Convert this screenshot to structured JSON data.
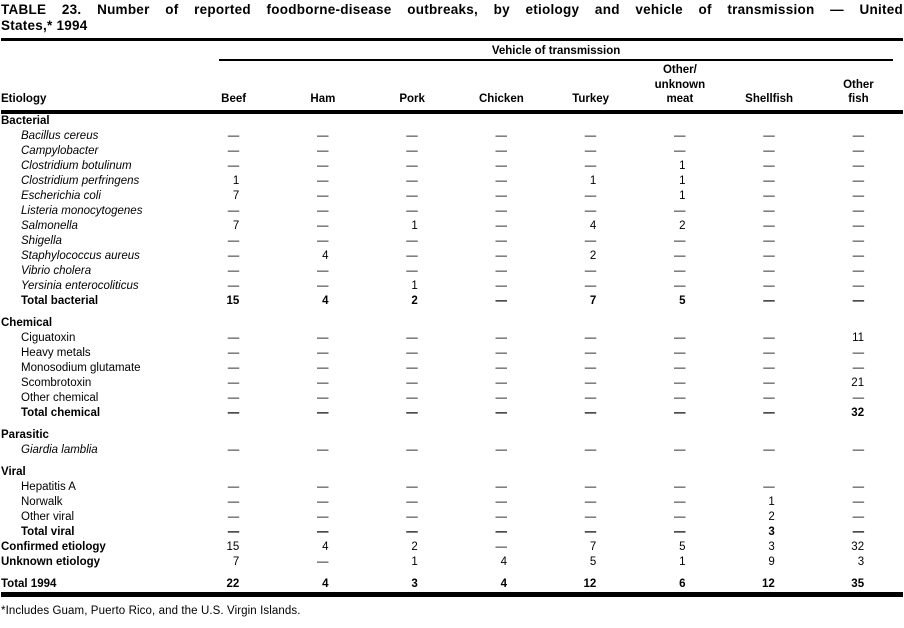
{
  "page": {
    "title_lines": [
      "TABLE 23. Number of reported foodborne-disease outbreaks, by etiology and vehicle of transmission — United",
      "States,* 1994"
    ],
    "footnote": "*Includes Guam, Puerto Rico, and the U.S. Virgin Islands."
  },
  "table": {
    "spanner": "Vehicle of transmission",
    "row_header": "Etiology",
    "columns": [
      "Beef",
      "Ham",
      "Pork",
      "Chicken",
      "Turkey",
      "Other/\nunknown\nmeat",
      "Shellfish",
      "Other\nfish"
    ],
    "rows": [
      {
        "type": "section",
        "label": "Bacterial"
      },
      {
        "type": "item",
        "italic": true,
        "label": "Bacillus cereus",
        "values": [
          "—",
          "—",
          "—",
          "—",
          "—",
          "—",
          "—",
          "—"
        ]
      },
      {
        "type": "item",
        "italic": true,
        "label": "Campylobacter",
        "values": [
          "—",
          "—",
          "—",
          "—",
          "—",
          "—",
          "—",
          "—"
        ]
      },
      {
        "type": "item",
        "italic": true,
        "label": "Clostridium botulinum",
        "values": [
          "—",
          "—",
          "—",
          "—",
          "—",
          "1",
          "—",
          "—"
        ]
      },
      {
        "type": "item",
        "italic": true,
        "label": "Clostridium perfringens",
        "values": [
          "1",
          "—",
          "—",
          "—",
          "1",
          "1",
          "—",
          "—"
        ]
      },
      {
        "type": "item",
        "italic": true,
        "label": "Escherichia coli",
        "values": [
          "7",
          "—",
          "—",
          "—",
          "—",
          "1",
          "—",
          "—"
        ]
      },
      {
        "type": "item",
        "italic": true,
        "label": "Listeria monocytogenes",
        "values": [
          "—",
          "—",
          "—",
          "—",
          "—",
          "—",
          "—",
          "—"
        ]
      },
      {
        "type": "item",
        "italic": true,
        "label": "Salmonella",
        "values": [
          "7",
          "—",
          "1",
          "—",
          "4",
          "2",
          "—",
          "—"
        ]
      },
      {
        "type": "item",
        "italic": true,
        "label": "Shigella",
        "values": [
          "—",
          "—",
          "—",
          "—",
          "—",
          "—",
          "—",
          "—"
        ]
      },
      {
        "type": "item",
        "italic": true,
        "label": "Staphylococcus aureus",
        "values": [
          "—",
          "4",
          "—",
          "—",
          "2",
          "—",
          "—",
          "—"
        ]
      },
      {
        "type": "item",
        "italic": true,
        "label": "Vibrio cholera",
        "values": [
          "—",
          "—",
          "—",
          "—",
          "—",
          "—",
          "—",
          "—"
        ]
      },
      {
        "type": "item",
        "italic": true,
        "label": "Yersinia enterocoliticus",
        "values": [
          "—",
          "—",
          "1",
          "—",
          "—",
          "—",
          "—",
          "—"
        ]
      },
      {
        "type": "total",
        "label": "Total bacterial",
        "values": [
          "15",
          "4",
          "2",
          "—",
          "7",
          "5",
          "—",
          "—"
        ]
      },
      {
        "type": "spacer"
      },
      {
        "type": "section",
        "label": "Chemical"
      },
      {
        "type": "item",
        "label": "Ciguatoxin",
        "values": [
          "—",
          "—",
          "—",
          "—",
          "—",
          "—",
          "—",
          "11"
        ]
      },
      {
        "type": "item",
        "label": "Heavy metals",
        "values": [
          "—",
          "—",
          "—",
          "—",
          "—",
          "—",
          "—",
          "—"
        ]
      },
      {
        "type": "item",
        "label": "Monosodium glutamate",
        "values": [
          "—",
          "—",
          "—",
          "—",
          "—",
          "—",
          "—",
          "—"
        ]
      },
      {
        "type": "item",
        "label": "Scombrotoxin",
        "values": [
          "—",
          "—",
          "—",
          "—",
          "—",
          "—",
          "—",
          "21"
        ]
      },
      {
        "type": "item",
        "label": "Other chemical",
        "values": [
          "—",
          "—",
          "—",
          "—",
          "—",
          "—",
          "—",
          "—"
        ]
      },
      {
        "type": "total",
        "label": "Total chemical",
        "values": [
          "—",
          "—",
          "—",
          "—",
          "—",
          "—",
          "—",
          "32"
        ]
      },
      {
        "type": "spacer"
      },
      {
        "type": "section",
        "label": "Parasitic"
      },
      {
        "type": "item",
        "italic": true,
        "label": "Giardia lamblia",
        "values": [
          "—",
          "—",
          "—",
          "—",
          "—",
          "—",
          "—",
          "—"
        ]
      },
      {
        "type": "spacer"
      },
      {
        "type": "section",
        "label": "Viral"
      },
      {
        "type": "item",
        "label": "Hepatitis A",
        "values": [
          "—",
          "—",
          "—",
          "—",
          "—",
          "—",
          "—",
          "—"
        ]
      },
      {
        "type": "item",
        "label": "Norwalk",
        "values": [
          "—",
          "—",
          "—",
          "—",
          "—",
          "—",
          "1",
          "—"
        ]
      },
      {
        "type": "item",
        "label": "Other viral",
        "values": [
          "—",
          "—",
          "—",
          "—",
          "—",
          "—",
          "2",
          "—"
        ]
      },
      {
        "type": "total",
        "label": "Total viral",
        "values": [
          "—",
          "—",
          "—",
          "—",
          "—",
          "—",
          "3",
          "—"
        ]
      },
      {
        "type": "summary",
        "label": "Confirmed etiology",
        "values": [
          "15",
          "4",
          "2",
          "—",
          "7",
          "5",
          "3",
          "32"
        ]
      },
      {
        "type": "summary",
        "label": "Unknown etiology",
        "values": [
          "7",
          "—",
          "1",
          "4",
          "5",
          "1",
          "9",
          "3"
        ]
      },
      {
        "type": "spacer"
      },
      {
        "type": "grand",
        "label": "Total 1994",
        "values": [
          "22",
          "4",
          "3",
          "4",
          "12",
          "6",
          "12",
          "35"
        ]
      }
    ]
  }
}
